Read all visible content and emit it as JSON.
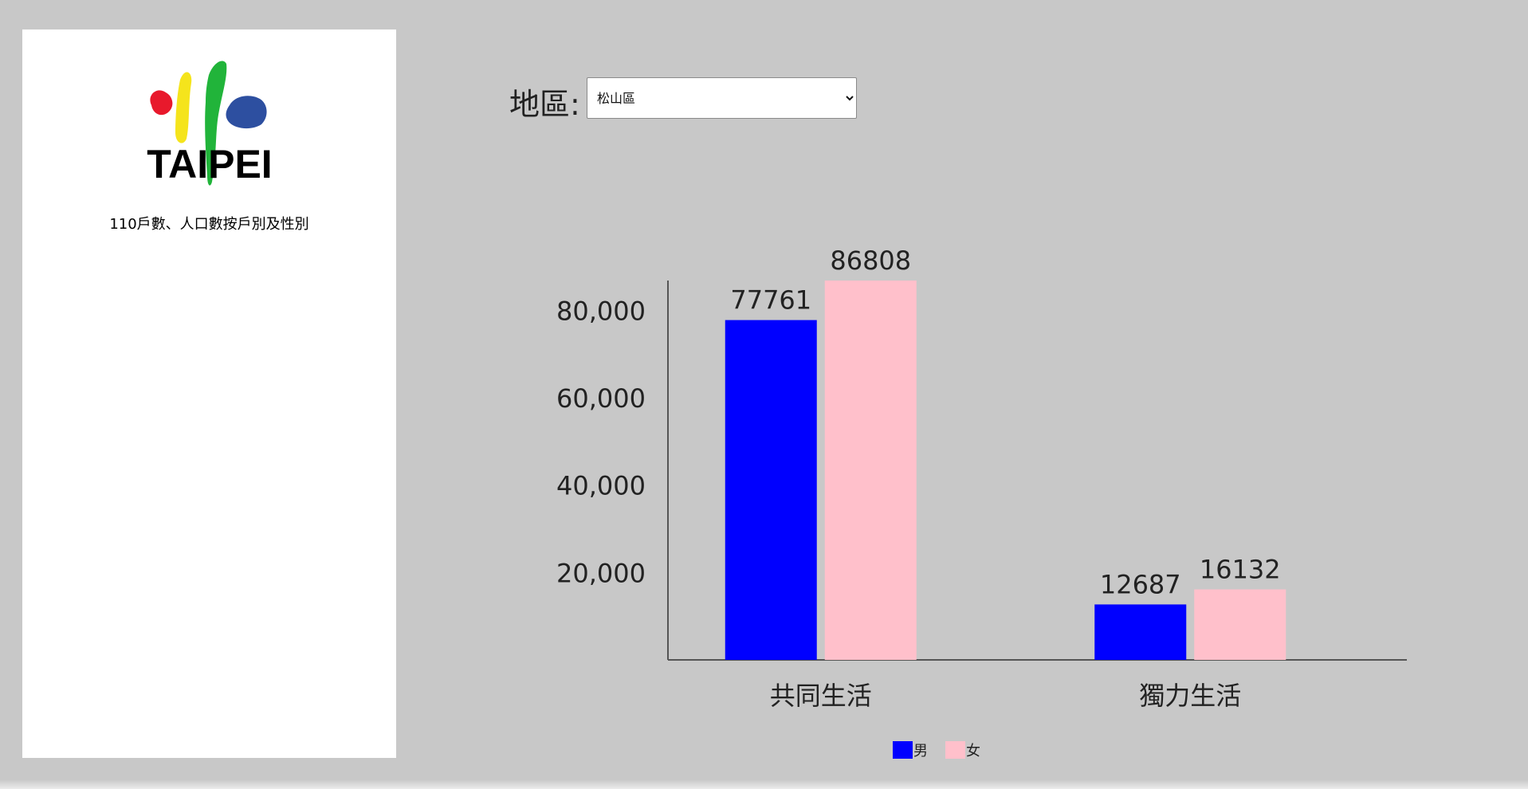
{
  "sidebar": {
    "logo_text": "TAIPEI",
    "title": "110戶數、人口數按戶別及性別"
  },
  "filter": {
    "label": "地區:",
    "selected": "松山區"
  },
  "colors": {
    "male": "#0000ff",
    "female": "#ffc0cb",
    "background": "#c8c8c8",
    "axis": "#555555"
  },
  "chart_data": {
    "type": "bar",
    "categories": [
      "共同生活",
      "獨力生活"
    ],
    "series": [
      {
        "name": "男",
        "values": [
          77761,
          12687
        ],
        "color": "#0000ff"
      },
      {
        "name": "女",
        "values": [
          86808,
          16132
        ],
        "color": "#ffc0cb"
      }
    ],
    "ylim": [
      0,
      86808
    ],
    "yticks": [
      20000,
      40000,
      60000,
      80000
    ],
    "ytick_labels": [
      "20,000",
      "40,000",
      "60,000",
      "80,000"
    ],
    "legend_position": "bottom-center",
    "grid": false
  }
}
